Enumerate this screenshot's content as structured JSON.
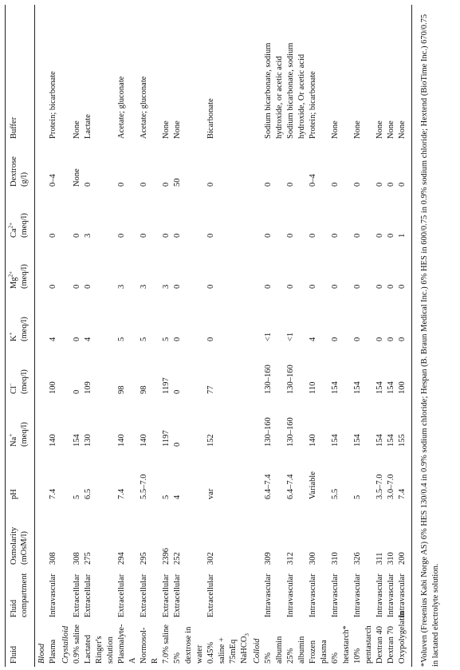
{
  "table": {
    "columns": [
      {
        "text": "Fluid"
      },
      {
        "text": "Fluid compartment"
      },
      {
        "text": "Osmolarity",
        "unit": "(mOsM/l)"
      },
      {
        "text": "pH"
      },
      {
        "text": "Na",
        "sup": "+",
        "unit": "(meq/l)"
      },
      {
        "text": "Cl",
        "sup": "−",
        "unit": "(meq/l)"
      },
      {
        "text": "K",
        "sup": "+",
        "unit": "(meq/l)"
      },
      {
        "text": "Mg",
        "sup": "2+",
        "unit": "(meq/l)"
      },
      {
        "text": "Ca",
        "sup": "2+",
        "unit": "(meq/l)"
      },
      {
        "text": "Dextrose",
        "unit": "(g/l)"
      },
      {
        "text": "Buffer"
      }
    ],
    "sections": [
      {
        "title": "Blood",
        "rows": [
          [
            "Plasma",
            "Intravascular",
            "308",
            "7.4",
            "140",
            "100",
            "4",
            "0",
            "0",
            "0–4",
            "Protein; bicarbonate"
          ]
        ]
      },
      {
        "title": "Crystalloid",
        "rows": [
          [
            "0.9% saline",
            "Extracellular",
            "308",
            "5",
            "154",
            "0",
            "0",
            "0",
            "0",
            "None",
            "None"
          ],
          [
            "Lactated Ringer's solution",
            "Extracellular",
            "275",
            "6.5",
            "130",
            "109",
            "4",
            "0",
            "3",
            "0",
            "Lactate"
          ],
          [
            "Plasmalyte-A",
            "Extracellular",
            "294",
            "7.4",
            "140",
            "98",
            "5",
            "3",
            "0",
            "0",
            "Acetate; gluconate"
          ],
          [
            "Normosol-R",
            "Extracellular",
            "295",
            "5.5–7.0",
            "140",
            "98",
            "5",
            "3",
            "0",
            "0",
            "Acetate; gluconate"
          ],
          [
            "7.0% saline",
            "Extracellular",
            "2396",
            "5",
            "1197",
            "1197",
            "5",
            "3",
            "0",
            "0",
            "None"
          ],
          [
            "5% dextrose in water",
            "Extracellular",
            "252",
            "4",
            "0",
            "0",
            "0",
            "0",
            "0",
            "50",
            "None"
          ],
          [
            {
              "text": "0.45% saline + 75mEq NaHCO",
              "sub": "3"
            },
            "Extracellular",
            "302",
            "var",
            "152",
            "77",
            "0",
            "0",
            "0",
            "0",
            "Bicarbonate"
          ]
        ]
      },
      {
        "title": "Colloid",
        "rows": [
          [
            "5% albumin",
            "Intravascular",
            "309",
            "6.4–7.4",
            "130–160",
            "130–160",
            "<1",
            "0",
            "0",
            "0",
            "Sodium bicarbonate, sodium hydroxide, or acetic acid"
          ],
          [
            "25% albumin",
            "Intravascular",
            "312",
            "6.4–7.4",
            "130–160",
            "130–160",
            "<1",
            "0",
            "0",
            "0",
            "Sodium bicarbonate, sodium hydroxide, Or acetic acid"
          ],
          [
            "Frozen plasma",
            "Intravascular",
            "300",
            "Variable",
            "140",
            "110",
            "4",
            "0",
            "0",
            "0–4",
            "Protein; bicarbonate"
          ],
          [
            "6% hetastarch*",
            "Intravascular",
            "310",
            "5.5",
            "154",
            "154",
            "0",
            "0",
            "0",
            "0",
            "None"
          ],
          [
            "10% pentastarch",
            "Intravascular",
            "326",
            "5",
            "154",
            "154",
            "0",
            "0",
            "0",
            "0",
            "None"
          ],
          [
            "Dextran 40",
            "Intravascular",
            "311",
            "3.5–7.0",
            "154",
            "154",
            "0",
            "0",
            "0",
            "0",
            "None"
          ],
          [
            "Dextran 70",
            "Intravascular",
            "310",
            "3.0–7.0",
            "154",
            "154",
            "0",
            "0",
            "0",
            "0",
            "None"
          ],
          [
            "Oxypolygelatin",
            "Intravascular",
            "200",
            "7.4",
            "155",
            "100",
            "0",
            "0",
            "1",
            "0",
            "None"
          ]
        ]
      }
    ],
    "footnote": "*Voluven (Fresenius Kabi Norge AS) 6% HES 130/0.4 in 0.9% sodium chloride; Hespan (B. Braun Medical Inc.) 6% HES in 600/0.75 in 0.9% sodium chloride; Hextend (BioTime Inc.) 670/0.75 in lactated electrolyte solution."
  }
}
